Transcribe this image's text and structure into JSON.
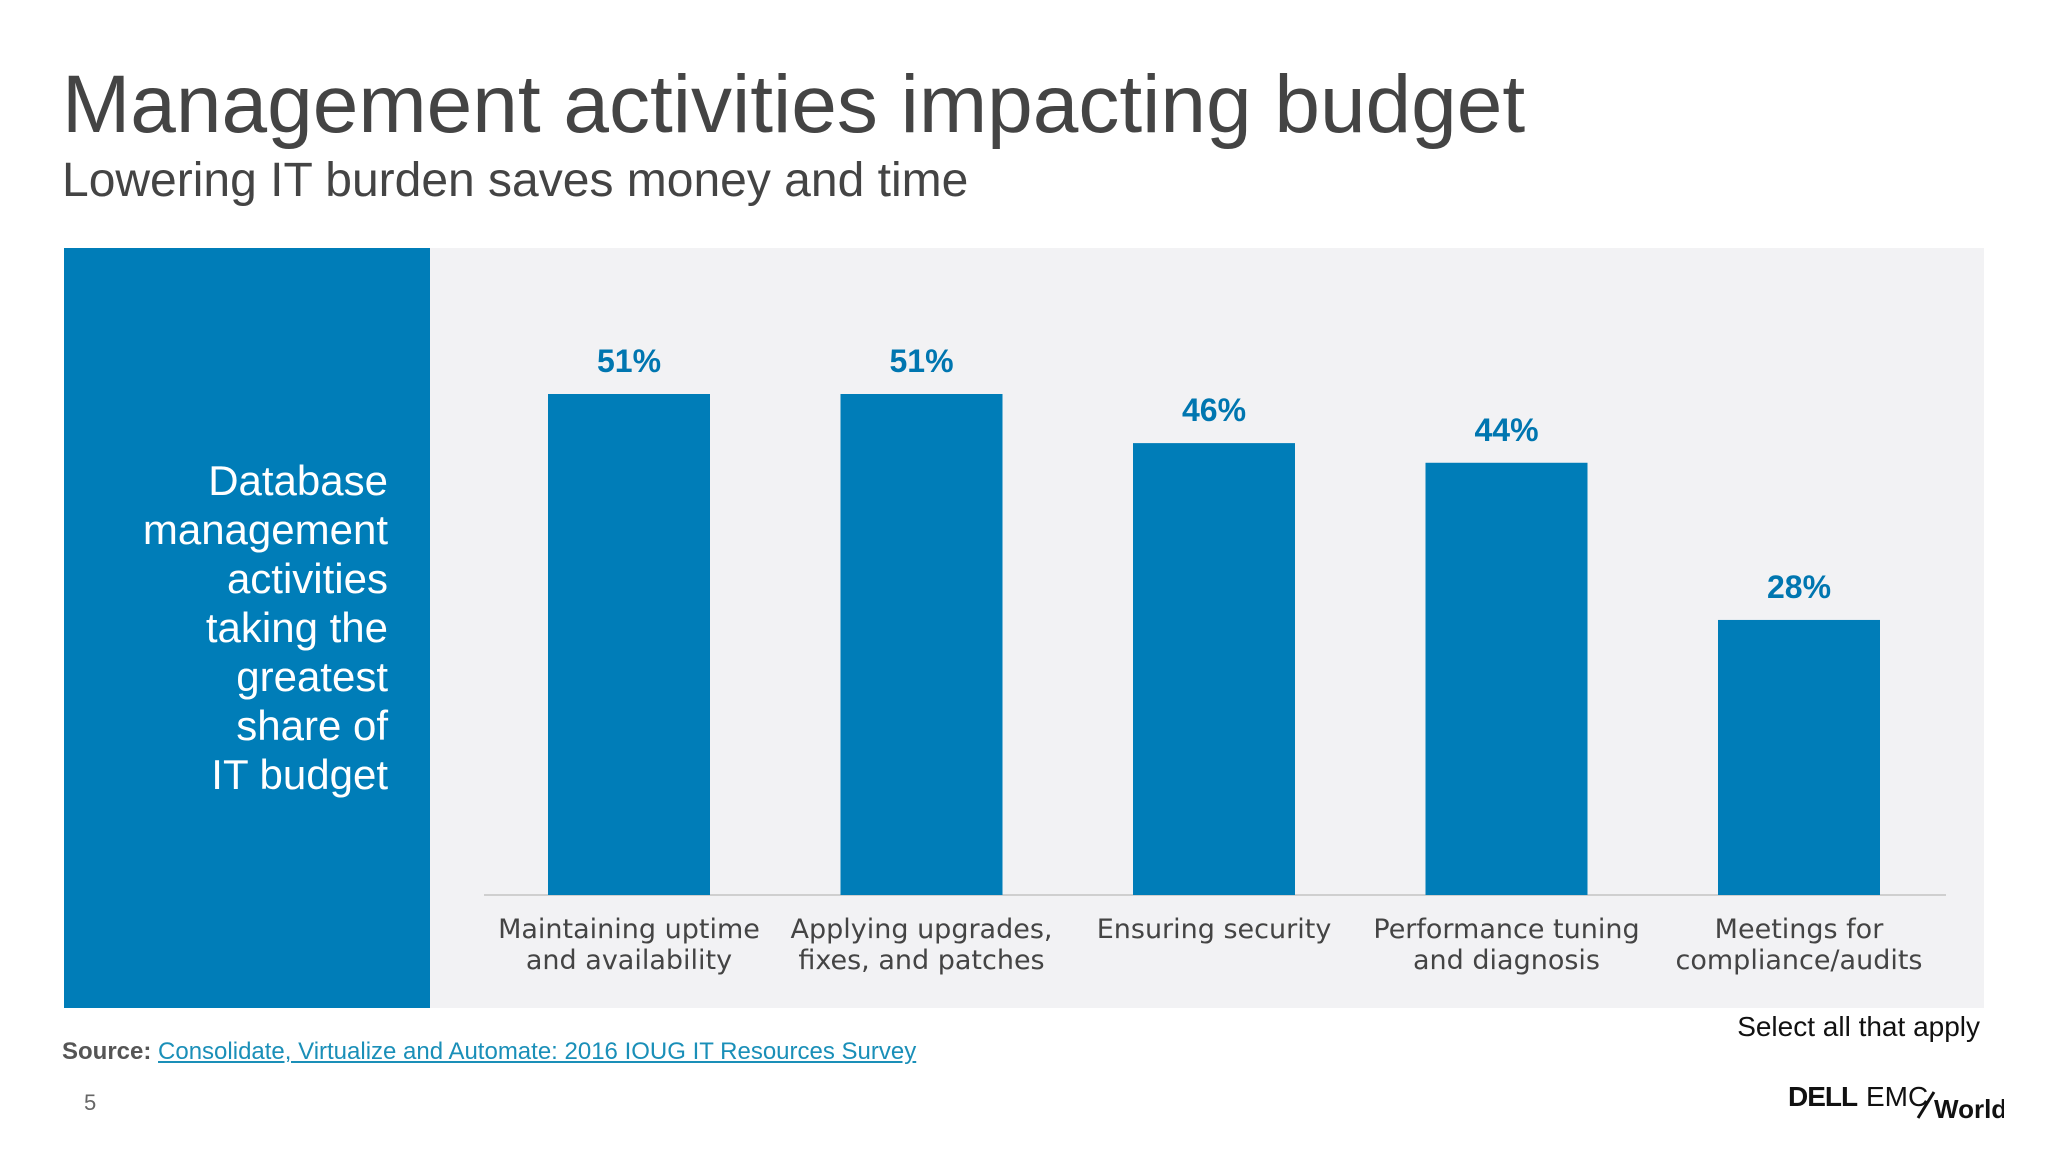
{
  "title": "Management activities impacting budget",
  "subtitle": "Lowering IT burden saves money and time",
  "side_panel": {
    "lines": [
      "Database",
      "management",
      "activities",
      "taking the",
      "greatest",
      "share of",
      "IT budget"
    ]
  },
  "note": "Select all that apply",
  "source": {
    "label": "Source:",
    "link_text": "Consolidate, Virtualize and Automate: 2016 IOUG IT Resources Survey"
  },
  "page_number": "5",
  "logo": {
    "brand": "DELL",
    "emc": "EMC",
    "world": "World"
  },
  "colors": {
    "bar": "#007db8",
    "label": "#0076b0",
    "panel": "#f2f2f4",
    "side": "#007db8"
  },
  "chart_data": {
    "type": "bar",
    "categories": [
      [
        "Maintaining uptime",
        "and availability"
      ],
      [
        "Applying upgrades,",
        "fixes, and patches"
      ],
      [
        "Ensuring security"
      ],
      [
        "Performance tuning",
        "and diagnosis"
      ],
      [
        "Meetings for",
        "compliance/audits"
      ]
    ],
    "values": [
      51,
      51,
      46,
      44,
      28
    ],
    "value_labels": [
      "51%",
      "51%",
      "46%",
      "44%",
      "28%"
    ],
    "ylim": [
      0,
      51
    ],
    "grid": false,
    "legend": "none"
  }
}
